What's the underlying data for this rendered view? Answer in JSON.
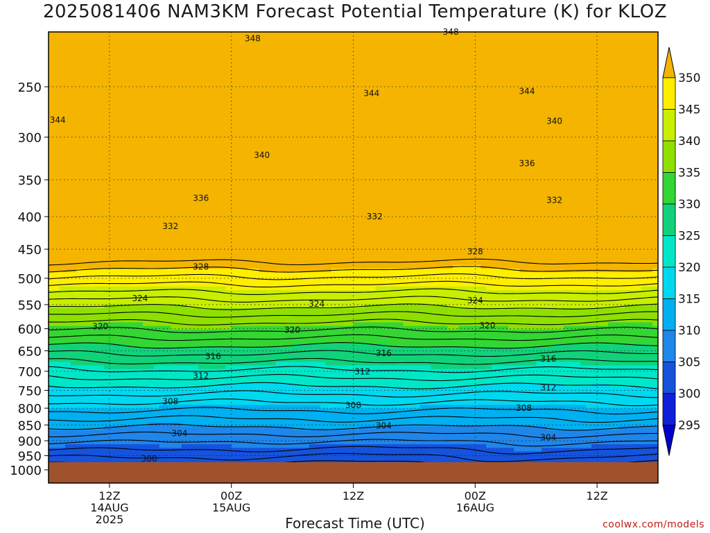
{
  "title": "2025081406 NAM3KM Forecast Potential Temperature (K) for KLOZ",
  "xlabel": "Forecast Time (UTC)",
  "credit": "coolwx.com/models",
  "colors": {
    "ground": "#a0522d",
    "frame": "#000000",
    "contour": "#000000",
    "credit": "#c21a1a"
  },
  "chart_data": {
    "type": "heatmap",
    "title": "2025081406 NAM3KM Forecast Potential Temperature (K) for KLOZ",
    "xlabel": "Forecast Time (UTC)",
    "ylabel": "",
    "y_axis": {
      "scale": "log-pressure",
      "ticks": [
        250,
        300,
        350,
        400,
        450,
        500,
        550,
        600,
        650,
        700,
        750,
        800,
        850,
        900,
        950,
        1000
      ]
    },
    "x_axis": {
      "ticks": [
        {
          "label": "12Z",
          "sub": "14AUG",
          "year": "2025"
        },
        {
          "label": "00Z",
          "sub": "15AUG",
          "year": ""
        },
        {
          "label": "12Z",
          "sub": "",
          "year": ""
        },
        {
          "label": "00Z",
          "sub": "16AUG",
          "year": ""
        },
        {
          "label": "12Z",
          "sub": "",
          "year": ""
        }
      ]
    },
    "colorbar": {
      "levels": [
        350,
        345,
        340,
        335,
        330,
        325,
        320,
        315,
        310,
        305,
        300,
        295
      ],
      "colors": [
        "#f4b400",
        "#ffee00",
        "#c8ee00",
        "#8fe000",
        "#33d633",
        "#11d27a",
        "#00e7c8",
        "#00d8f0",
        "#00b0f0",
        "#1f86ea",
        "#1553dd",
        "#1020d8",
        "#0000cc"
      ]
    },
    "contour_labels": [
      {
        "value": "348",
        "col": 0.335,
        "p": 210
      },
      {
        "value": "348",
        "col": 0.66,
        "p": 205
      },
      {
        "value": "344",
        "col": 0.015,
        "p": 282
      },
      {
        "value": "344",
        "col": 0.53,
        "p": 256
      },
      {
        "value": "344",
        "col": 0.785,
        "p": 254
      },
      {
        "value": "340",
        "col": 0.35,
        "p": 320
      },
      {
        "value": "340",
        "col": 0.83,
        "p": 283
      },
      {
        "value": "336",
        "col": 0.25,
        "p": 374
      },
      {
        "value": "336",
        "col": 0.785,
        "p": 330
      },
      {
        "value": "332",
        "col": 0.2,
        "p": 414
      },
      {
        "value": "332",
        "col": 0.535,
        "p": 400
      },
      {
        "value": "332",
        "col": 0.83,
        "p": 377
      },
      {
        "value": "328",
        "col": 0.25,
        "p": 480
      },
      {
        "value": "328",
        "col": 0.7,
        "p": 454
      },
      {
        "value": "324",
        "col": 0.15,
        "p": 538
      },
      {
        "value": "324",
        "col": 0.44,
        "p": 549
      },
      {
        "value": "324",
        "col": 0.7,
        "p": 542
      },
      {
        "value": "320",
        "col": 0.085,
        "p": 595
      },
      {
        "value": "320",
        "col": 0.4,
        "p": 603
      },
      {
        "value": "320",
        "col": 0.72,
        "p": 593
      },
      {
        "value": "316",
        "col": 0.27,
        "p": 663
      },
      {
        "value": "316",
        "col": 0.55,
        "p": 656
      },
      {
        "value": "316",
        "col": 0.82,
        "p": 669
      },
      {
        "value": "312",
        "col": 0.25,
        "p": 712
      },
      {
        "value": "312",
        "col": 0.515,
        "p": 701
      },
      {
        "value": "312",
        "col": 0.82,
        "p": 743
      },
      {
        "value": "308",
        "col": 0.2,
        "p": 781
      },
      {
        "value": "308",
        "col": 0.5,
        "p": 792
      },
      {
        "value": "308",
        "col": 0.78,
        "p": 800
      },
      {
        "value": "304",
        "col": 0.215,
        "p": 877
      },
      {
        "value": "304",
        "col": 0.55,
        "p": 853
      },
      {
        "value": "304",
        "col": 0.82,
        "p": 890
      },
      {
        "value": "300",
        "col": 0.165,
        "p": 961
      }
    ]
  }
}
